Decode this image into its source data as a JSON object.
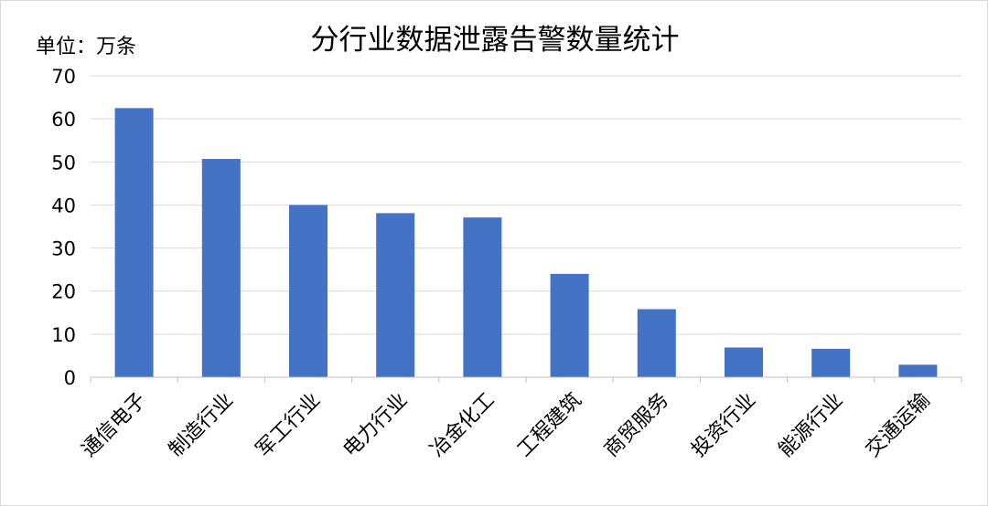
{
  "chart_data": {
    "type": "bar",
    "title": "分行业数据泄露告警数量统计",
    "unit_label": "单位：万条",
    "categories": [
      "通信电子",
      "制造行业",
      "军工行业",
      "电力行业",
      "冶金化工",
      "工程建筑",
      "商贸服务",
      "投资行业",
      "能源行业",
      "交通运输"
    ],
    "values": [
      62.5,
      50.7,
      40.0,
      38.1,
      37.1,
      24.0,
      15.8,
      6.9,
      6.6,
      2.9
    ],
    "y_ticks": [
      "0",
      "10",
      "20",
      "30",
      "40",
      "50",
      "60",
      "70"
    ],
    "ylim": [
      0,
      70
    ],
    "grid": true,
    "bar_color": "#4472c4",
    "grid_color": "#d9d9d9"
  }
}
